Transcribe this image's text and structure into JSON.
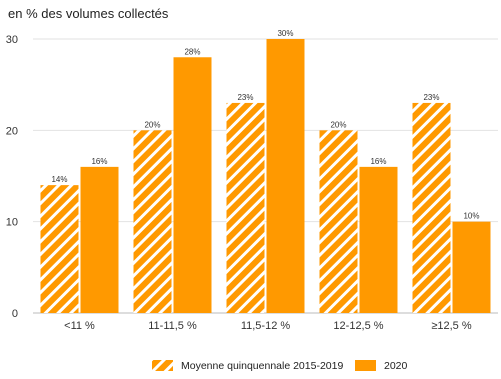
{
  "chart_data": {
    "type": "bar",
    "ylabel": "en % des volumes collectés",
    "ylim": [
      0,
      30
    ],
    "yticks": [
      0,
      10,
      20,
      30
    ],
    "categories": [
      "<11 %",
      "11-11,5 %",
      "11,5-12 %",
      "12-12,5 %",
      "≥12,5 %"
    ],
    "series": [
      {
        "name": "Moyenne quinquennale 2015-2019",
        "values": [
          14,
          20,
          23,
          20,
          23
        ],
        "labels": [
          "14%",
          "20%",
          "23%",
          "20%",
          "23%"
        ],
        "color": "#ff9900",
        "pattern": "diagonal-hatch"
      },
      {
        "name": "2020",
        "values": [
          16,
          28,
          30,
          16,
          10
        ],
        "labels": [
          "16%",
          "28%",
          "30%",
          "16%",
          "10%"
        ],
        "color": "#ff9900",
        "pattern": "solid"
      }
    ],
    "grid": true,
    "legend": "bottom"
  }
}
